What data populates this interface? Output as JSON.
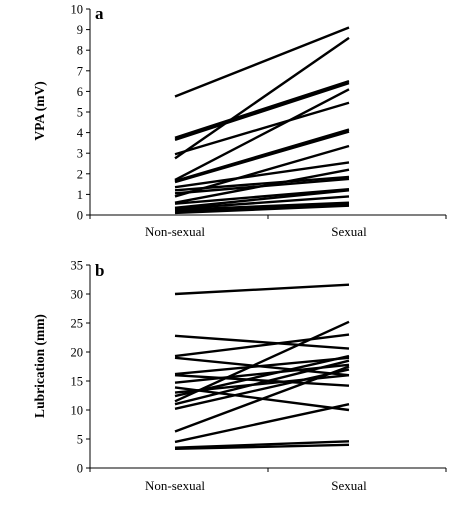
{
  "chart_data": [
    {
      "type": "line",
      "panel_label": "a",
      "xlabel": "",
      "ylabel": "VPA (mV)",
      "categories": [
        "Non-sexual",
        "Sexual"
      ],
      "ylim": [
        0,
        10
      ],
      "yticks": [
        0,
        1,
        2,
        3,
        4,
        5,
        6,
        7,
        8,
        9,
        10
      ],
      "grid": false,
      "legend": "none",
      "series": [
        {
          "values": [
            5.75,
            9.1
          ]
        },
        {
          "values": [
            2.75,
            8.6
          ]
        },
        {
          "values": [
            3.75,
            6.5
          ]
        },
        {
          "values": [
            3.65,
            6.4
          ]
        },
        {
          "values": [
            1.7,
            6.1
          ]
        },
        {
          "values": [
            2.95,
            5.45
          ]
        },
        {
          "values": [
            1.65,
            4.15
          ]
        },
        {
          "values": [
            1.6,
            4.05
          ]
        },
        {
          "values": [
            0.9,
            3.35
          ]
        },
        {
          "values": [
            1.35,
            2.55
          ]
        },
        {
          "values": [
            0.6,
            2.2
          ]
        },
        {
          "values": [
            1.2,
            1.85
          ]
        },
        {
          "values": [
            1.05,
            1.75
          ]
        },
        {
          "values": [
            0.55,
            1.25
          ]
        },
        {
          "values": [
            0.35,
            1.2
          ]
        },
        {
          "values": [
            0.3,
            0.9
          ]
        },
        {
          "values": [
            0.25,
            0.6
          ]
        },
        {
          "values": [
            0.2,
            0.5
          ]
        },
        {
          "values": [
            0.1,
            0.45
          ]
        }
      ]
    },
    {
      "type": "line",
      "panel_label": "b",
      "xlabel": "",
      "ylabel": "Lubrication (mm)",
      "categories": [
        "Non-sexual",
        "Sexual"
      ],
      "ylim": [
        0,
        35
      ],
      "yticks": [
        0,
        5,
        10,
        15,
        20,
        25,
        30,
        35
      ],
      "grid": false,
      "legend": "none",
      "series": [
        {
          "values": [
            30.0,
            31.6
          ]
        },
        {
          "values": [
            22.8,
            20.6
          ]
        },
        {
          "values": [
            19.3,
            23.0
          ]
        },
        {
          "values": [
            19.0,
            16.0
          ]
        },
        {
          "values": [
            16.2,
            19.0
          ]
        },
        {
          "values": [
            16.0,
            14.2
          ]
        },
        {
          "values": [
            14.7,
            17.8
          ]
        },
        {
          "values": [
            13.9,
            10.0
          ]
        },
        {
          "values": [
            13.0,
            16.0
          ]
        },
        {
          "values": [
            12.4,
            19.3
          ]
        },
        {
          "values": [
            11.5,
            25.2
          ]
        },
        {
          "values": [
            11.0,
            18.5
          ]
        },
        {
          "values": [
            10.2,
            17.0
          ]
        },
        {
          "values": [
            6.3,
            17.5
          ]
        },
        {
          "values": [
            4.5,
            11.0
          ]
        },
        {
          "values": [
            3.5,
            4.6
          ]
        },
        {
          "values": [
            3.3,
            4.0
          ]
        }
      ]
    }
  ]
}
